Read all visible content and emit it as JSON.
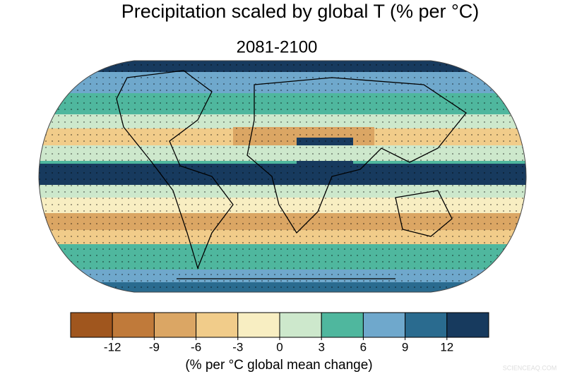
{
  "map": {
    "title": "Precipitation scaled by global T (% per °C)",
    "subtitle": "2081-2100"
  },
  "colorbar": {
    "lim": [
      -15,
      15
    ],
    "ticks": [
      -12,
      -9,
      -6,
      -3,
      0,
      3,
      6,
      9,
      12
    ],
    "colors": [
      "#a0561e",
      "#c07a3a",
      "#dba664",
      "#f1cc8a",
      "#f8eec2",
      "#cde8cc",
      "#4fb79e",
      "#6fa8cc",
      "#2a6b8f",
      "#173a5e"
    ],
    "label": "(% per °C global mean change)"
  },
  "watermark": "SCIENCEAQ.COM"
}
